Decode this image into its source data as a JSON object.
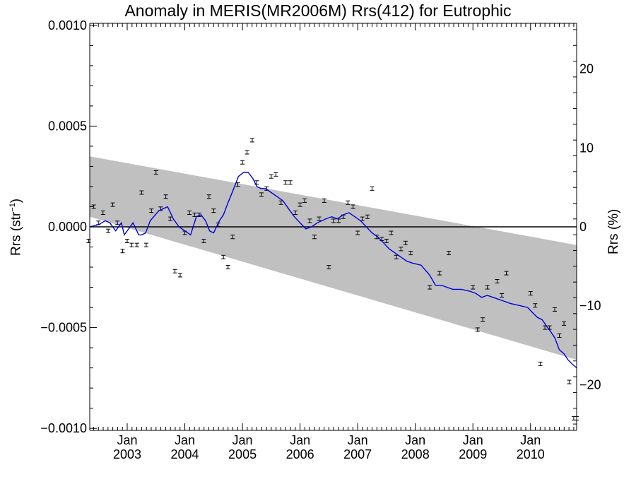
{
  "chart_data": {
    "type": "scatter",
    "title": "Anomaly in MERIS(MR2006M) Rrs(412) for Eutrophic",
    "ylabel_left": "Rrs (str",
    "ylabel_left_sup": "−1",
    "ylabel_left_close": ")",
    "ylabel_right": "Rrs (%)",
    "xlim": [
      2002.35,
      2010.8
    ],
    "ylim_left": [
      -0.00101,
      0.00101
    ],
    "ylim_right": [
      -25.8,
      25.8
    ],
    "yticks_left": [
      -0.001,
      -0.0005,
      0.0,
      0.0005,
      0.001
    ],
    "yticks_left_labels": [
      "−0.0010",
      "−0.0005",
      "0.0000",
      "0.0005",
      "0.0010"
    ],
    "yticks_right": [
      -20,
      -10,
      0,
      10,
      20
    ],
    "yticks_right_labels": [
      "−20",
      "−10",
      "0",
      "10",
      "20"
    ],
    "xticks": [
      2003.0,
      2004.0,
      2005.0,
      2006.0,
      2007.0,
      2008.0,
      2009.0,
      2010.0
    ],
    "xticks_month_labels": [
      "Jan",
      "Jan",
      "Jan",
      "Jan",
      "Jan",
      "Jan",
      "Jan",
      "Jan"
    ],
    "xticks_year_labels": [
      "2003",
      "2004",
      "2005",
      "2006",
      "2007",
      "2008",
      "2009",
      "2010"
    ],
    "zero_line": true,
    "grid": false,
    "legend": "none",
    "confidence_band": {
      "color": "#c0c0c0",
      "upper": [
        [
          2002.35,
          0.00035
        ],
        [
          2010.8,
          -9e-05
        ]
      ],
      "lower": [
        [
          2002.35,
          5e-05
        ],
        [
          2010.8,
          -0.00066
        ]
      ]
    },
    "running_mean": {
      "color": "#0000dd",
      "x": [
        2002.35,
        2002.5,
        2002.62,
        2002.7,
        2002.8,
        2002.9,
        2002.95,
        2003.05,
        2003.1,
        2003.2,
        2003.25,
        2003.32,
        2003.4,
        2003.55,
        2003.7,
        2003.8,
        2003.9,
        2004.0,
        2004.1,
        2004.2,
        2004.28,
        2004.36,
        2004.43,
        2004.5,
        2004.6,
        2004.67,
        2004.75,
        2004.85,
        2004.93,
        2005.02,
        2005.1,
        2005.18,
        2005.25,
        2005.32,
        2005.4,
        2005.5,
        2005.6,
        2005.7,
        2005.8,
        2005.9,
        2006.0,
        2006.1,
        2006.2,
        2006.3,
        2006.45,
        2006.55,
        2006.65,
        2006.75,
        2006.85,
        2006.95,
        2007.05,
        2007.15,
        2007.25,
        2007.35,
        2007.45,
        2007.55,
        2007.65,
        2007.75,
        2007.85,
        2007.95,
        2008.1,
        2008.25,
        2008.35,
        2008.45,
        2008.55,
        2008.65,
        2008.8,
        2008.95,
        2009.05,
        2009.15,
        2009.25,
        2009.35,
        2009.45,
        2009.55,
        2009.65,
        2009.8,
        2009.95,
        2010.05,
        2010.12,
        2010.2,
        2010.27,
        2010.35,
        2010.42,
        2010.5,
        2010.58,
        2010.65,
        2010.72,
        2010.8
      ],
      "y": [
        0.0,
        1e-05,
        3e-05,
        2e-05,
        -2e-05,
        2e-05,
        -4e-05,
        0.0,
        2e-05,
        -4e-05,
        -4e-05,
        -3e-05,
        3e-05,
        8e-05,
        0.0001,
        4e-05,
        0.0,
        -2e-05,
        -4e-05,
        5e-05,
        6e-05,
        3e-05,
        -2e-05,
        -3e-05,
        3e-05,
        6e-05,
        0.00012,
        0.00019,
        0.00025,
        0.00027,
        0.00027,
        0.00024,
        0.0002,
        0.00019,
        0.00019,
        0.00017,
        0.00015,
        0.00013,
        9e-05,
        5e-05,
        2e-05,
        -1e-05,
        0.0,
        2e-05,
        4e-05,
        5e-05,
        4e-05,
        6e-05,
        7e-05,
        5e-05,
        3e-05,
        0.0,
        -3e-05,
        -5e-05,
        -8e-05,
        -0.00011,
        -0.00013,
        -0.00015,
        -0.00017,
        -0.00018,
        -0.00019,
        -0.00024,
        -0.00029,
        -0.00029,
        -0.0003,
        -0.00031,
        -0.00031,
        -0.00032,
        -0.00033,
        -0.00035,
        -0.00034,
        -0.00035,
        -0.00036,
        -0.00037,
        -0.00038,
        -0.00039,
        -0.0004,
        -0.00043,
        -0.00045,
        -0.00046,
        -0.00049,
        -0.00052,
        -0.00055,
        -0.00061,
        -0.00063,
        -0.00066,
        -0.00068,
        -0.0007
      ]
    },
    "points": {
      "color": "#000000",
      "x": [
        2002.33,
        2002.42,
        2002.5,
        2002.58,
        2002.67,
        2002.75,
        2002.83,
        2002.92,
        2003.0,
        2003.08,
        2003.17,
        2003.25,
        2003.33,
        2003.42,
        2003.5,
        2003.58,
        2003.67,
        2003.75,
        2003.83,
        2003.92,
        2004.0,
        2004.08,
        2004.17,
        2004.25,
        2004.33,
        2004.42,
        2004.5,
        2004.58,
        2004.67,
        2004.75,
        2004.83,
        2004.92,
        2005.0,
        2005.08,
        2005.17,
        2005.25,
        2005.33,
        2005.42,
        2005.5,
        2005.58,
        2005.67,
        2005.75,
        2005.83,
        2005.92,
        2006.0,
        2006.08,
        2006.17,
        2006.25,
        2006.33,
        2006.42,
        2006.5,
        2006.58,
        2006.67,
        2006.75,
        2006.83,
        2006.92,
        2007.0,
        2007.08,
        2007.17,
        2007.25,
        2007.33,
        2007.42,
        2007.5,
        2007.58,
        2007.67,
        2007.75,
        2007.83,
        2007.92,
        2008.25,
        2008.42,
        2008.58,
        2009.0,
        2009.08,
        2009.17,
        2009.25,
        2009.42,
        2009.5,
        2009.58,
        2010.0,
        2010.08,
        2010.17,
        2010.25,
        2010.33,
        2010.42,
        2010.5,
        2010.58,
        2010.67,
        2010.75,
        2010.8
      ],
      "y": [
        -7e-05,
        0.0001,
        2e-05,
        7e-05,
        -2e-05,
        0.00011,
        2e-05,
        -0.00012,
        -7e-05,
        -9e-05,
        -9e-05,
        0.00017,
        -9e-05,
        8e-05,
        0.00027,
        9e-05,
        0.00015,
        4e-05,
        -0.00022,
        -0.00024,
        -3e-05,
        7e-05,
        6e-05,
        6e-05,
        -7e-05,
        0.00015,
        8e-05,
        1e-05,
        -0.00015,
        -0.0002,
        -5e-05,
        0.00021,
        0.00032,
        0.00037,
        0.00043,
        0.00022,
        0.00016,
        0.00019,
        0.00025,
        0.00026,
        0.00012,
        0.00022,
        0.00022,
        7e-05,
        0.00011,
        0.00013,
        3e-05,
        -5e-05,
        4e-05,
        0.00013,
        -0.0002,
        3e-05,
        3e-05,
        5e-05,
        0.00012,
        0.0001,
        -3e-05,
        4e-05,
        5e-05,
        0.00019,
        -5e-05,
        -6e-05,
        -7e-05,
        -3e-05,
        -0.00015,
        -0.00011,
        -8e-05,
        -0.00013,
        -0.0003,
        -0.00023,
        -0.00013,
        -0.0003,
        -0.00051,
        -0.00046,
        -0.0003,
        -0.00027,
        -0.00034,
        -0.00023,
        -0.00033,
        -0.00039,
        -0.00068,
        -0.0005,
        -0.0005,
        -0.00041,
        -0.00054,
        -0.00048,
        -0.00077,
        -0.00095,
        -0.00095
      ]
    }
  }
}
